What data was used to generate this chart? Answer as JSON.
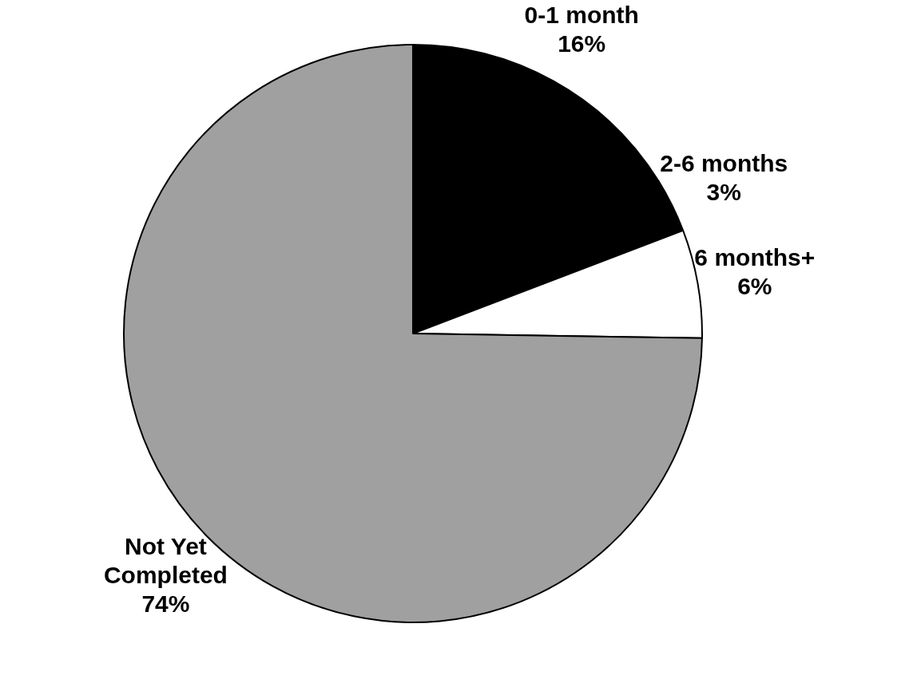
{
  "chart_data": {
    "type": "pie",
    "categories": [
      "0-1 month",
      "2-6 months",
      "6 months+",
      "Not Yet Completed"
    ],
    "values": [
      16,
      3,
      6,
      74
    ],
    "value_labels": [
      "16%",
      "3%",
      "6%",
      "74%"
    ],
    "colors": [
      "#000000",
      "#000000",
      "#ffffff",
      "#a0a0a0"
    ],
    "legend": false
  }
}
